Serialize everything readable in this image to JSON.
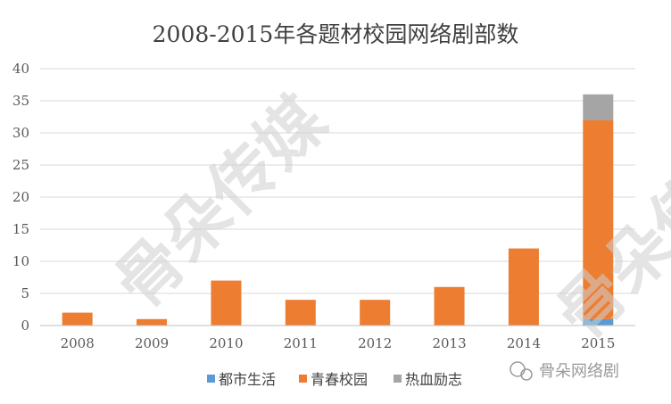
{
  "chart_data": {
    "type": "bar",
    "stacked": true,
    "title": "2008-2015年各题材校园网络剧部数",
    "categories": [
      "2008",
      "2009",
      "2010",
      "2011",
      "2012",
      "2013",
      "2014",
      "2015"
    ],
    "series": [
      {
        "name": "都市生活",
        "color": "#5b9bd5",
        "values": [
          0,
          0,
          0,
          0,
          0,
          0,
          0,
          1
        ]
      },
      {
        "name": "青春校园",
        "color": "#ed7d31",
        "values": [
          2,
          1,
          7,
          4,
          4,
          6,
          12,
          31
        ]
      },
      {
        "name": "热血励志",
        "color": "#a5a5a5",
        "values": [
          0,
          0,
          0,
          0,
          0,
          0,
          0,
          4
        ]
      }
    ],
    "ylim": [
      0,
      40
    ],
    "yticks": [
      0,
      5,
      10,
      15,
      20,
      25,
      30,
      35,
      40
    ],
    "grid": true,
    "legend_position": "bottom"
  },
  "watermark": {
    "text": "骨朵传媒",
    "brand_label": "骨朵网络剧"
  }
}
